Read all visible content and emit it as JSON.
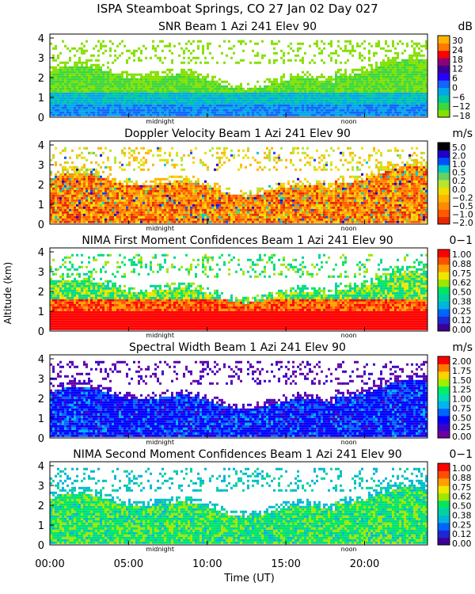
{
  "header": {
    "title": "ISPA Steamboat Springs, CO  27 Jan 02 Day 027"
  },
  "y_axis": {
    "label": "Altitude (km)",
    "ticks": [
      "0",
      "1",
      "2",
      "3",
      "4"
    ],
    "range": [
      0,
      4.2
    ]
  },
  "x_axis": {
    "label": "Time (UT)",
    "ticks": [
      "00:00",
      "05:00",
      "10:00",
      "15:00",
      "20:00"
    ],
    "tick_hours": [
      0,
      5,
      10,
      15,
      20
    ],
    "range": [
      0,
      24
    ],
    "markers": [
      {
        "label": "midnight",
        "hour": 7
      },
      {
        "label": "noon",
        "hour": 19
      }
    ]
  },
  "colors": {
    "snr": [
      "#84e000",
      "#3cd83c",
      "#00c8a0",
      "#00a8e8",
      "#1464ff",
      "#2800ff",
      "#3c0096",
      "#8c0078",
      "#ff0000",
      "#ff7800",
      "#ffb400"
    ],
    "doppler": [
      "#e62800",
      "#ff5a00",
      "#ff8c00",
      "#ffb400",
      "#f0dc00",
      "#b4e632",
      "#64d264",
      "#00c8c8",
      "#0050ff",
      "#1e00c8",
      "#000000"
    ],
    "conf": [
      "#3c0096",
      "#1e28d2",
      "#0064ff",
      "#00b4dc",
      "#00d2a0",
      "#00e664",
      "#a0e600",
      "#f0e600",
      "#ffa000",
      "#ff5000",
      "#ff0000"
    ],
    "width": [
      "#6e00a0",
      "#3c00c8",
      "#0000ff",
      "#0064ff",
      "#00b4f0",
      "#00dcb4",
      "#00f064",
      "#a0f000",
      "#ffd200",
      "#ff7800",
      "#ff0000"
    ]
  },
  "chart_data": [
    {
      "type": "heatmap",
      "id": "snr",
      "title": "SNR Beam 1 Azi 241 Elev 90",
      "unit": "dB",
      "scale_labels": [
        "30",
        "24",
        "18",
        "12",
        "6",
        "0",
        "−6",
        "−12",
        "−18"
      ],
      "scale_range": [
        -18,
        30
      ]
    },
    {
      "type": "heatmap",
      "id": "doppler",
      "title": "Doppler Velocity Beam 1 Azi 241 Elev 90",
      "unit": "m/s",
      "scale_labels": [
        "5.0",
        "2.0",
        "1.0",
        "0.5",
        "0.2",
        "0.0",
        "−0.2",
        "−0.5",
        "−1.0",
        "−2.0"
      ],
      "scale_range": [
        -2.0,
        5.0
      ]
    },
    {
      "type": "heatmap",
      "id": "conf1",
      "title": "NIMA First Moment Confidences Beam 1 Azi 241 Elev 90",
      "unit": "0−1",
      "scale_labels": [
        "1.00",
        "0.88",
        "0.75",
        "0.62",
        "0.50",
        "0.38",
        "0.25",
        "0.12",
        "0.00"
      ],
      "scale_range": [
        0,
        1
      ]
    },
    {
      "type": "heatmap",
      "id": "width",
      "title": "Spectral Width Beam 1 Azi 241 Elev 90",
      "unit": "m/s",
      "scale_labels": [
        "2.00",
        "1.75",
        "1.50",
        "1.25",
        "1.00",
        "0.75",
        "0.50",
        "0.25",
        "0.00"
      ],
      "scale_range": [
        0,
        2
      ]
    },
    {
      "type": "heatmap",
      "id": "conf2",
      "title": "NIMA Second Moment Confidences Beam 1 Azi 241 Elev 90",
      "unit": "0−1",
      "scale_labels": [
        "1.00",
        "0.88",
        "0.75",
        "0.62",
        "0.50",
        "0.38",
        "0.25",
        "0.12",
        "0.00"
      ],
      "scale_range": [
        0,
        1
      ]
    }
  ]
}
